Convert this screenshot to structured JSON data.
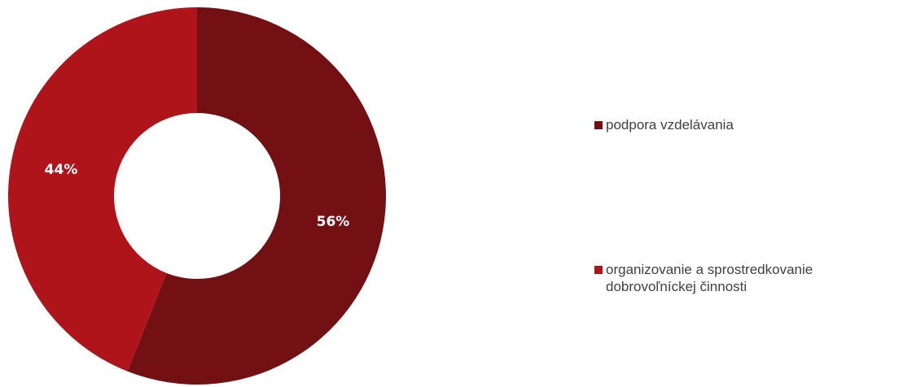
{
  "chart_data": {
    "type": "pie",
    "variant": "donut",
    "series": [
      {
        "name": "podpora vzdelávania",
        "value": 56,
        "label": "56%",
        "color": "#731014"
      },
      {
        "name": "organizovanie a sprostredkovanie dobrovoľníckej činnosti",
        "value": 44,
        "label": "44%",
        "color": "#ae1419"
      }
    ],
    "legend_position": "right"
  },
  "legend": {
    "items": [
      {
        "label": "podpora vzdelávania",
        "color": "#731014"
      },
      {
        "label": "organizovanie a sprostredkovanie dobrovoľníckej činnosti",
        "color": "#ae1419"
      }
    ]
  }
}
